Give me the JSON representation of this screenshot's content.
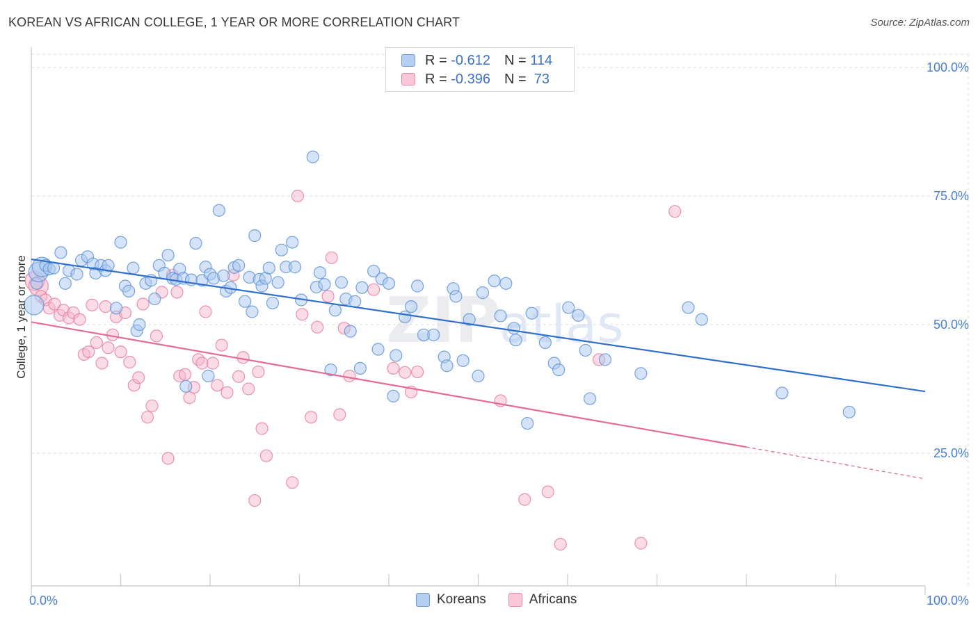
{
  "title": "KOREAN VS AFRICAN COLLEGE, 1 YEAR OR MORE CORRELATION CHART",
  "source": "Source: ZipAtlas.com",
  "watermark": {
    "zip": "ZIP",
    "atlas": "atlas"
  },
  "legend": {
    "rows": [
      {
        "r_label": "R = ",
        "r_value": "-0.612",
        "n_label": "N = ",
        "n_value": "114"
      },
      {
        "r_label": "R = ",
        "r_value": "-0.396",
        "n_label": "N = ",
        "n_value": " 73"
      }
    ]
  },
  "bottom_legend": {
    "koreans": "Koreans",
    "africans": "Africans"
  },
  "colors": {
    "korean_fill": "#a9c8f0",
    "korean_stroke": "#5f93d6",
    "korean_line": "#2f6fcc",
    "african_fill": "#f7b8cc",
    "african_stroke": "#e67fa2",
    "african_line": "#e56b93",
    "axis_text": "#4a7fd0",
    "grid": "#dddddd"
  },
  "chart_data": {
    "type": "scatter",
    "title": "KOREAN VS AFRICAN COLLEGE, 1 YEAR OR MORE CORRELATION CHART",
    "xlabel": "",
    "ylabel": "College, 1 year or more",
    "xlim": [
      0,
      100
    ],
    "ylim": [
      0,
      105
    ],
    "x_tick_labels": [
      "0.0%",
      "100.0%"
    ],
    "y_ticks": [
      {
        "value": 100,
        "label": "100.0%"
      },
      {
        "value": 75,
        "label": "75.0%"
      },
      {
        "value": 50,
        "label": "50.0%"
      },
      {
        "value": 25,
        "label": "25.0%"
      }
    ],
    "series": [
      {
        "name": "Koreans",
        "r": -0.612,
        "n": 114,
        "trend": {
          "x0": 0,
          "y0": 62.7,
          "x1": 100,
          "y1": 37.0
        },
        "points": [
          [
            0.3,
            53.8
          ],
          [
            0.6,
            58.0
          ],
          [
            0.8,
            60.2
          ],
          [
            1.2,
            61.2
          ],
          [
            1.6,
            61.5
          ],
          [
            2.0,
            60.8
          ],
          [
            2.5,
            61.0
          ],
          [
            3.3,
            64.0
          ],
          [
            3.8,
            58.0
          ],
          [
            4.2,
            60.5
          ],
          [
            5.1,
            59.8
          ],
          [
            5.6,
            62.5
          ],
          [
            6.3,
            63.2
          ],
          [
            6.9,
            61.8
          ],
          [
            7.2,
            60.0
          ],
          [
            7.8,
            61.5
          ],
          [
            8.3,
            60.5
          ],
          [
            8.6,
            61.5
          ],
          [
            9.5,
            53.2
          ],
          [
            10.0,
            66.0
          ],
          [
            10.5,
            57.5
          ],
          [
            10.9,
            56.5
          ],
          [
            11.4,
            61.0
          ],
          [
            11.8,
            48.8
          ],
          [
            12.1,
            50.0
          ],
          [
            12.8,
            58.0
          ],
          [
            13.4,
            58.6
          ],
          [
            13.8,
            55.0
          ],
          [
            14.3,
            61.5
          ],
          [
            14.9,
            60.0
          ],
          [
            15.3,
            63.5
          ],
          [
            15.8,
            59.0
          ],
          [
            16.2,
            58.8
          ],
          [
            16.6,
            60.8
          ],
          [
            17.0,
            59.0
          ],
          [
            17.3,
            38.0
          ],
          [
            17.9,
            58.7
          ],
          [
            18.4,
            65.8
          ],
          [
            19.1,
            58.6
          ],
          [
            19.5,
            61.2
          ],
          [
            19.8,
            40.0
          ],
          [
            20.0,
            59.8
          ],
          [
            20.4,
            59.0
          ],
          [
            21.0,
            72.2
          ],
          [
            21.5,
            59.5
          ],
          [
            21.8,
            56.5
          ],
          [
            22.3,
            57.2
          ],
          [
            22.7,
            61.1
          ],
          [
            23.2,
            61.5
          ],
          [
            23.9,
            54.5
          ],
          [
            24.4,
            59.2
          ],
          [
            24.7,
            52.5
          ],
          [
            25.0,
            67.3
          ],
          [
            25.5,
            58.8
          ],
          [
            25.8,
            57.5
          ],
          [
            26.2,
            59.0
          ],
          [
            26.6,
            61.0
          ],
          [
            27.0,
            54.2
          ],
          [
            27.6,
            58.2
          ],
          [
            28.0,
            64.5
          ],
          [
            28.5,
            61.2
          ],
          [
            29.2,
            66.0
          ],
          [
            29.5,
            61.2
          ],
          [
            30.2,
            54.8
          ],
          [
            31.5,
            82.6
          ],
          [
            31.9,
            57.3
          ],
          [
            32.3,
            60.1
          ],
          [
            32.8,
            57.8
          ],
          [
            33.5,
            41.2
          ],
          [
            34.0,
            52.8
          ],
          [
            34.7,
            58.2
          ],
          [
            35.2,
            55.0
          ],
          [
            35.7,
            48.7
          ],
          [
            36.2,
            54.5
          ],
          [
            36.8,
            41.5
          ],
          [
            37.0,
            57.2
          ],
          [
            38.3,
            60.4
          ],
          [
            38.8,
            45.2
          ],
          [
            39.2,
            58.9
          ],
          [
            40.0,
            58.0
          ],
          [
            40.5,
            36.1
          ],
          [
            40.8,
            44.0
          ],
          [
            41.8,
            51.5
          ],
          [
            42.5,
            53.5
          ],
          [
            43.2,
            57.5
          ],
          [
            43.9,
            48.0
          ],
          [
            45.0,
            48.0
          ],
          [
            46.2,
            43.7
          ],
          [
            46.5,
            42.0
          ],
          [
            47.2,
            57.0
          ],
          [
            47.5,
            55.5
          ],
          [
            48.3,
            43.0
          ],
          [
            49.0,
            51.0
          ],
          [
            50.0,
            40.0
          ],
          [
            50.5,
            56.2
          ],
          [
            51.8,
            58.5
          ],
          [
            52.5,
            51.7
          ],
          [
            53.1,
            58.0
          ],
          [
            54.0,
            49.3
          ],
          [
            54.2,
            47.0
          ],
          [
            55.5,
            30.8
          ],
          [
            56.0,
            52.2
          ],
          [
            57.5,
            46.5
          ],
          [
            58.5,
            42.5
          ],
          [
            59.0,
            41.2
          ],
          [
            60.1,
            53.3
          ],
          [
            61.2,
            51.8
          ],
          [
            62.0,
            45.0
          ],
          [
            62.5,
            35.6
          ],
          [
            64.2,
            43.2
          ],
          [
            68.2,
            40.5
          ],
          [
            73.5,
            53.3
          ],
          [
            75.0,
            51.0
          ],
          [
            84.0,
            36.7
          ],
          [
            91.5,
            33.0
          ]
        ],
        "large_points": [
          [
            0.3,
            53.8
          ],
          [
            0.8,
            60.2
          ],
          [
            1.2,
            61.2
          ]
        ]
      },
      {
        "name": "Africans",
        "r": -0.396,
        "n": 73,
        "trend": {
          "x0": 0,
          "y0": 50.5,
          "x1": 80,
          "y1": 26.2,
          "dash_x1": 100,
          "dash_y1": 20.0
        },
        "points": [
          [
            0.4,
            58.5
          ],
          [
            0.8,
            57.5
          ],
          [
            1.1,
            55.5
          ],
          [
            1.6,
            54.8
          ],
          [
            2.0,
            53.2
          ],
          [
            2.6,
            54.0
          ],
          [
            3.2,
            51.8
          ],
          [
            3.6,
            52.8
          ],
          [
            4.2,
            51.3
          ],
          [
            4.7,
            52.3
          ],
          [
            5.4,
            51.0
          ],
          [
            5.9,
            44.2
          ],
          [
            6.4,
            44.7
          ],
          [
            6.8,
            53.8
          ],
          [
            7.3,
            46.5
          ],
          [
            7.9,
            42.5
          ],
          [
            8.3,
            53.5
          ],
          [
            8.6,
            45.5
          ],
          [
            9.1,
            48.0
          ],
          [
            9.5,
            51.5
          ],
          [
            10.0,
            44.7
          ],
          [
            10.5,
            52.3
          ],
          [
            11.0,
            42.7
          ],
          [
            11.5,
            38.2
          ],
          [
            12.0,
            39.7
          ],
          [
            12.5,
            54.0
          ],
          [
            13.0,
            32.0
          ],
          [
            13.5,
            34.2
          ],
          [
            14.0,
            47.8
          ],
          [
            14.6,
            56.3
          ],
          [
            15.3,
            24.0
          ],
          [
            15.8,
            59.6
          ],
          [
            16.3,
            56.3
          ],
          [
            16.6,
            40.0
          ],
          [
            17.2,
            40.3
          ],
          [
            17.7,
            35.8
          ],
          [
            18.2,
            37.8
          ],
          [
            18.7,
            43.2
          ],
          [
            19.1,
            42.5
          ],
          [
            19.5,
            52.5
          ],
          [
            20.3,
            42.5
          ],
          [
            20.8,
            38.2
          ],
          [
            21.3,
            46.0
          ],
          [
            21.9,
            36.8
          ],
          [
            22.6,
            59.6
          ],
          [
            23.2,
            39.9
          ],
          [
            23.7,
            43.6
          ],
          [
            24.3,
            37.5
          ],
          [
            25.0,
            15.8
          ],
          [
            25.4,
            40.8
          ],
          [
            25.8,
            29.8
          ],
          [
            26.3,
            24.5
          ],
          [
            29.2,
            19.3
          ],
          [
            29.8,
            75.0
          ],
          [
            30.3,
            52.0
          ],
          [
            31.3,
            32.0
          ],
          [
            32.0,
            49.5
          ],
          [
            33.2,
            55.5
          ],
          [
            33.6,
            63.0
          ],
          [
            34.5,
            32.5
          ],
          [
            35.0,
            49.3
          ],
          [
            35.6,
            40.0
          ],
          [
            38.3,
            56.8
          ],
          [
            40.5,
            41.5
          ],
          [
            41.8,
            40.7
          ],
          [
            42.5,
            36.9
          ],
          [
            43.2,
            40.8
          ],
          [
            52.5,
            35.2
          ],
          [
            55.2,
            16.0
          ],
          [
            57.8,
            17.5
          ],
          [
            59.2,
            7.3
          ],
          [
            63.5,
            43.2
          ],
          [
            68.2,
            7.5
          ],
          [
            72.0,
            72.0
          ]
        ],
        "large_points": [
          [
            0.4,
            58.5
          ],
          [
            0.8,
            57.5
          ]
        ]
      }
    ]
  }
}
